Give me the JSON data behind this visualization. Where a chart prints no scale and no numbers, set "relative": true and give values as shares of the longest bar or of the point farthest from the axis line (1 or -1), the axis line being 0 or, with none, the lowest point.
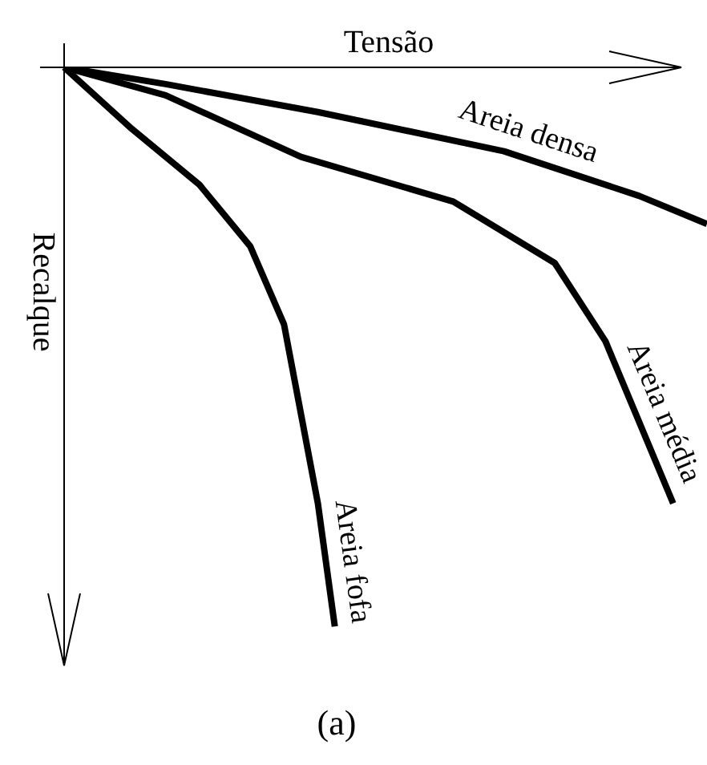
{
  "chart_data": {
    "type": "line",
    "relative": true,
    "xlabel": "Tensão",
    "ylabel": "Recalque",
    "annotations": [
      "(a)"
    ],
    "legend": false,
    "marker": "none",
    "line_style": "solid",
    "categories": [
      null,
      null,
      null,
      null,
      null,
      null,
      null,
      null,
      null,
      null,
      null,
      null,
      null,
      null,
      null,
      null,
      null,
      null,
      null,
      null,
      null,
      null,
      null,
      null,
      null,
      null,
      null,
      null,
      null,
      null,
      null,
      null,
      null,
      null,
      null,
      null,
      null,
      null,
      null
    ],
    "series": [
      {
        "name": "Areia densa",
        "color": "#000000",
        "values": [
          0,
          null,
          null,
          null,
          null,
          null,
          -0.03,
          null,
          null,
          null,
          null,
          null,
          null,
          null,
          null,
          -0.08,
          null,
          null,
          null,
          null,
          null,
          null,
          null,
          null,
          null,
          null,
          -0.15,
          null,
          null,
          null,
          null,
          null,
          null,
          null,
          -0.23,
          null,
          null,
          null,
          -0.28
        ]
      },
      {
        "name": "Areia média",
        "color": "#000000",
        "values": [
          0,
          null,
          null,
          null,
          null,
          null,
          -0.05,
          null,
          null,
          null,
          null,
          null,
          null,
          null,
          -0.16,
          null,
          null,
          null,
          null,
          null,
          null,
          null,
          null,
          -0.24,
          null,
          null,
          null,
          null,
          null,
          -0.35,
          null,
          null,
          -0.49,
          null,
          null,
          null,
          -0.78,
          null,
          null
        ]
      },
      {
        "name": "Areia fofa",
        "color": "#000000",
        "values": [
          0,
          null,
          null,
          null,
          -0.11,
          null,
          null,
          null,
          -0.21,
          null,
          null,
          -0.32,
          null,
          -0.46,
          -0.62,
          -0.78,
          -1,
          null,
          null,
          null,
          null,
          null,
          null,
          null,
          null,
          null,
          null,
          null,
          null,
          null,
          null,
          null,
          null,
          null,
          null,
          null,
          null,
          null,
          null
        ]
      }
    ]
  }
}
